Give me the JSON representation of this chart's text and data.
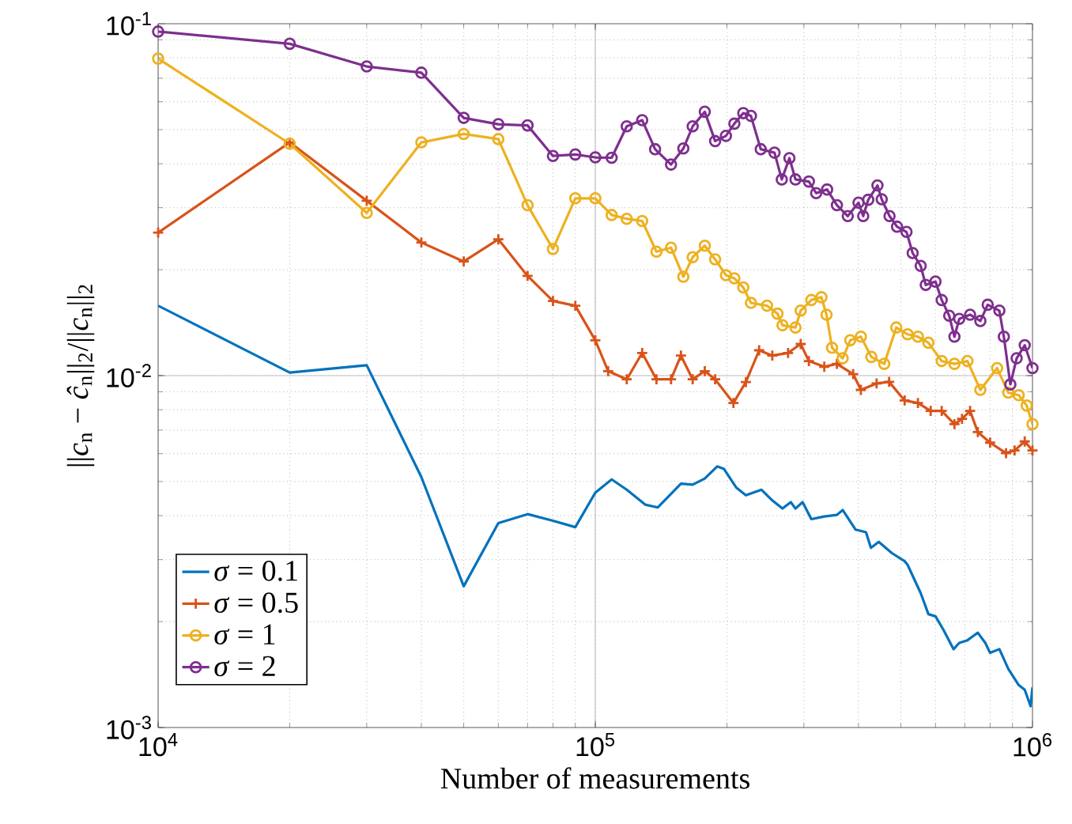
{
  "chart_data": {
    "type": "line",
    "xlabel": "Number of measurements",
    "ylabel": "||*c*$_{n}$ − *ĉ*$_{n}$||$_{2}$/||*c*$_{n}$||$_{2}$",
    "log": "xy",
    "grid": true,
    "legend": "bottom left",
    "xlim": [
      10000,
      1000000
    ],
    "xticks": [
      {
        "value": 10000,
        "label": "10$^{4}$"
      },
      {
        "value": 100000,
        "label": "10$^{5}$"
      },
      {
        "value": 1000000,
        "label": "10$^{6}$"
      }
    ],
    "ylim": [
      0.001,
      0.1
    ],
    "yticks": [
      {
        "value": 0.001,
        "label": "10$^{-3}$"
      },
      {
        "value": 0.01,
        "label": "10$^{-2}$"
      },
      {
        "value": 0.1,
        "label": "10$^{-1}$"
      }
    ],
    "series": [
      {
        "name": "*σ* = 0.1",
        "color": "#0072bd",
        "marker": "none",
        "x": [
          10000,
          20000,
          30000,
          40000,
          50000,
          60000,
          70000,
          80000,
          90000,
          100000,
          109000,
          118000,
          130000,
          139000,
          157000,
          167000,
          178000,
          190000,
          197000,
          210000,
          221000,
          240000,
          254000,
          268000,
          280000,
          287000,
          298000,
          312000,
          334000,
          357000,
          368000,
          394000,
          416000,
          427000,
          445000,
          477000,
          510000,
          518000,
          555000,
          578000,
          600000,
          625000,
          660000,
          680000,
          710000,
          750000,
          780000,
          800000,
          840000,
          880000,
          930000,
          960000,
          990000,
          1000000
        ],
        "values": [
          0.0158,
          0.0102,
          0.0107,
          0.00515,
          0.00252,
          0.00381,
          0.00404,
          0.00387,
          0.00371,
          0.00465,
          0.00507,
          0.00474,
          0.0043,
          0.00422,
          0.00493,
          0.0049,
          0.0051,
          0.00552,
          0.00543,
          0.00481,
          0.00457,
          0.00474,
          0.00442,
          0.00419,
          0.00437,
          0.00419,
          0.00437,
          0.00391,
          0.00398,
          0.00402,
          0.00415,
          0.00365,
          0.00359,
          0.00324,
          0.00337,
          0.00313,
          0.00297,
          0.0029,
          0.00241,
          0.0021,
          0.00207,
          0.0019,
          0.00167,
          0.00174,
          0.00177,
          0.00186,
          0.00174,
          0.00163,
          0.00167,
          0.00147,
          0.00132,
          0.00128,
          0.00115,
          0.0013
        ]
      },
      {
        "name": "*σ* = 0.5",
        "color": "#d95319",
        "marker": "cross",
        "x": [
          10000,
          20000,
          30000,
          40000,
          50000,
          60000,
          70000,
          80000,
          90000,
          100000,
          107000,
          118000,
          128000,
          138000,
          149000,
          157000,
          167000,
          178000,
          188000,
          207000,
          221000,
          237000,
          254000,
          276000,
          295000,
          308000,
          334000,
          357000,
          389000,
          405000,
          440000,
          470000,
          510000,
          547000,
          585000,
          620000,
          663000,
          690000,
          720000,
          750000,
          800000,
          870000,
          910000,
          960000,
          1000000
        ],
        "values": [
          0.0255,
          0.046,
          0.0314,
          0.0239,
          0.0211,
          0.0244,
          0.0192,
          0.0163,
          0.0158,
          0.0126,
          0.0103,
          0.00976,
          0.0116,
          0.00976,
          0.00976,
          0.0114,
          0.00976,
          0.0103,
          0.00976,
          0.00836,
          0.00959,
          0.0118,
          0.0114,
          0.0116,
          0.0123,
          0.011,
          0.0106,
          0.0108,
          0.0101,
          0.00911,
          0.0095,
          0.0096,
          0.0085,
          0.00836,
          0.00794,
          0.00794,
          0.00728,
          0.00754,
          0.00794,
          0.00691,
          0.00645,
          0.00602,
          0.00613,
          0.0065,
          0.00613
        ]
      },
      {
        "name": "*σ* = 1",
        "color": "#edb120",
        "marker": "circle",
        "x": [
          10000,
          20000,
          30000,
          40000,
          50000,
          60000,
          70000,
          80000,
          90000,
          100000,
          109000,
          118000,
          128000,
          138000,
          149000,
          159000,
          167000,
          178000,
          188000,
          199000,
          208000,
          218000,
          227000,
          247000,
          261000,
          268000,
          287000,
          295000,
          312000,
          329000,
          338000,
          348000,
          368000,
          383000,
          405000,
          428000,
          458000,
          488000,
          518000,
          547000,
          578000,
          620000,
          663000,
          710000,
          760000,
          830000,
          880000,
          930000,
          970000,
          1000000
        ],
        "values": [
          0.0796,
          0.0456,
          0.029,
          0.046,
          0.0486,
          0.047,
          0.0305,
          0.0229,
          0.0319,
          0.0319,
          0.0286,
          0.0279,
          0.0275,
          0.0225,
          0.0231,
          0.0191,
          0.0217,
          0.0234,
          0.0214,
          0.0193,
          0.0189,
          0.0178,
          0.0161,
          0.0158,
          0.015,
          0.0139,
          0.0137,
          0.0153,
          0.0164,
          0.0167,
          0.0149,
          0.012,
          0.0112,
          0.0126,
          0.0129,
          0.0113,
          0.0108,
          0.0137,
          0.0131,
          0.0129,
          0.0124,
          0.011,
          0.0108,
          0.011,
          0.00911,
          0.0105,
          0.00895,
          0.0088,
          0.00822,
          0.00728
        ]
      },
      {
        "name": "*σ* = 2",
        "color": "#7e2f8e",
        "marker": "circle",
        "x": [
          10000,
          20000,
          30000,
          40000,
          50000,
          60000,
          70000,
          80000,
          90000,
          100000,
          109000,
          118000,
          128000,
          137000,
          149000,
          159000,
          167000,
          178000,
          188000,
          199000,
          208000,
          218000,
          227000,
          239000,
          257000,
          267000,
          278000,
          287000,
          308000,
          320000,
          339000,
          357000,
          378000,
          400000,
          410000,
          421000,
          442000,
          452000,
          471000,
          490000,
          515000,
          532000,
          555000,
          570000,
          600000,
          620000,
          645000,
          663000,
          680000,
          720000,
          760000,
          790000,
          840000,
          860000,
          890000,
          920000,
          960000,
          1000000
        ],
        "values": [
          0.095,
          0.0877,
          0.0756,
          0.0726,
          0.054,
          0.0518,
          0.0514,
          0.0421,
          0.0425,
          0.0417,
          0.0416,
          0.0511,
          0.0532,
          0.044,
          0.0398,
          0.0442,
          0.0511,
          0.0562,
          0.0464,
          0.048,
          0.052,
          0.0557,
          0.0547,
          0.044,
          0.043,
          0.0361,
          0.0415,
          0.0361,
          0.0356,
          0.033,
          0.0338,
          0.0305,
          0.0284,
          0.031,
          0.0284,
          0.0316,
          0.0347,
          0.0317,
          0.0284,
          0.0265,
          0.0256,
          0.0223,
          0.0205,
          0.0181,
          0.0185,
          0.0164,
          0.0148,
          0.0129,
          0.0145,
          0.0149,
          0.0143,
          0.0159,
          0.0153,
          0.0129,
          0.00944,
          0.0112,
          0.0122,
          0.0105
        ]
      }
    ]
  }
}
